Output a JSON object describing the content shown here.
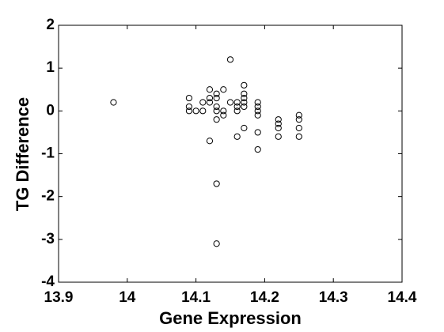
{
  "chart_data": {
    "type": "scatter",
    "x_label": "Gene Expression",
    "y_label": "TG Difference",
    "x": [
      13.98,
      14.09,
      14.09,
      14.09,
      14.1,
      14.11,
      14.11,
      14.12,
      14.12,
      14.12,
      14.12,
      14.13,
      14.13,
      14.13,
      14.13,
      14.13,
      14.13,
      14.13,
      14.14,
      14.14,
      14.14,
      14.15,
      14.15,
      14.16,
      14.16,
      14.16,
      14.16,
      14.17,
      14.17,
      14.17,
      14.17,
      14.17,
      14.17,
      14.19,
      14.19,
      14.19,
      14.19,
      14.19,
      14.19,
      14.22,
      14.22,
      14.22,
      14.22,
      14.25,
      14.25,
      14.25,
      14.25
    ],
    "y": [
      0.2,
      0.3,
      0.1,
      0.0,
      0.0,
      0.2,
      0.0,
      0.5,
      0.3,
      0.2,
      -0.7,
      0.4,
      0.3,
      0.1,
      0.0,
      -0.2,
      -1.7,
      -3.1,
      0.5,
      0.0,
      -0.1,
      1.2,
      0.2,
      0.2,
      0.1,
      0.0,
      -0.6,
      0.6,
      0.4,
      0.3,
      0.2,
      0.1,
      -0.4,
      0.2,
      0.1,
      0.0,
      -0.1,
      -0.5,
      -0.9,
      -0.2,
      -0.3,
      -0.4,
      -0.6,
      -0.1,
      -0.2,
      -0.4,
      -0.6
    ],
    "color": "#000000",
    "xlim": [
      13.9,
      14.4
    ],
    "xticks": [
      13.9,
      14,
      14.1,
      14.2,
      14.3,
      14.4
    ],
    "ylim": [
      -4,
      2
    ],
    "yticks": [
      -4,
      -3,
      -2,
      -1,
      0,
      1,
      2
    ],
    "grid": false
  }
}
